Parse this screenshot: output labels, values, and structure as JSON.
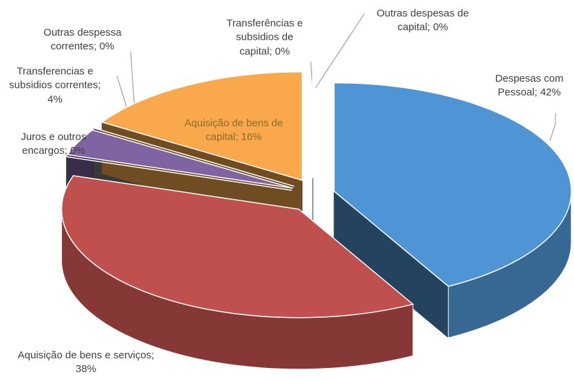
{
  "chart_data": {
    "type": "pie",
    "categories": [
      "Despesas com Pessoal; 42%",
      "Aquisição de bens e serviços; 38%",
      "Juros e outros encargos; 0%",
      "Transferencias e subsidios correntes; 4%",
      "Outras despessa correntes; 0%",
      "Aquisição de bens de capital; 16%",
      "Transferências e subsidios de capital; 0%",
      "Outras despesas de capital; 0%"
    ],
    "values": [
      42,
      38,
      0,
      4,
      0,
      16,
      0,
      0
    ],
    "colors": [
      "#4f94d4",
      "#c0504d",
      "#8fae4f",
      "#8064a2",
      "#7f7f7f",
      "#f9a94b",
      "#4f94d4",
      "#7f7f7f"
    ]
  }
}
